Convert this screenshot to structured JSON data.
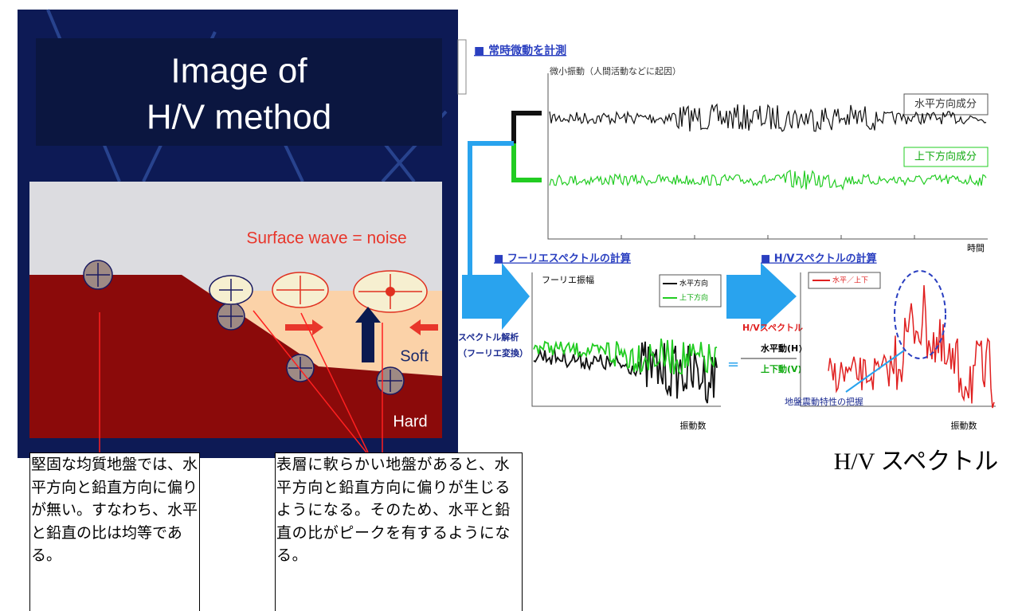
{
  "slide": {
    "title": [
      "Image of",
      "H/V method"
    ],
    "surface_wave": "Surface wave = noise",
    "soft": "Soft",
    "hard": "Hard"
  },
  "callouts": [
    "堅固な均質地盤では、水平方向と鉛直方向に偏りが無い。すなわち、水平と鉛直の比は均等である。",
    "表層に軟らかい地盤があると、水平方向と鉛直方向に偏りが生じるようになる。そのため、水平と鉛直の比がピークを有するようになる。"
  ],
  "diagram": {
    "step1": {
      "heading": "■ 常時微動を計測",
      "signal_label": "微小振動（人間活動などに起因）",
      "horizontal": "水平方向成分",
      "vertical": "上下方向成分",
      "x_label": "時間"
    },
    "step2": {
      "heading": "■ フーリエスペクトルの計算",
      "y_label": "フーリエ振幅",
      "legend": [
        "水平方向",
        "上下方向"
      ],
      "method": [
        "スペクトル解析",
        "（フーリエ変換）"
      ],
      "x_label": "振動数"
    },
    "step3": {
      "heading": "■ H/Vスペクトルの計算",
      "legend": "水平／上下",
      "ratio_title": "H/Vスペクトル",
      "equals": "=",
      "numerator": "水平動(H)",
      "denominator": "上下動(V)",
      "note": "地盤震動特性の把握",
      "x_label": "振動数"
    }
  },
  "caption": "H/V スペクトル"
}
